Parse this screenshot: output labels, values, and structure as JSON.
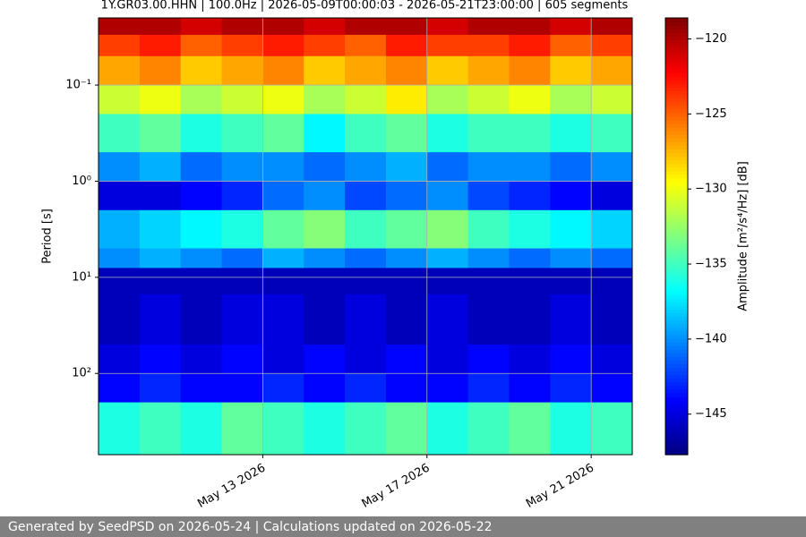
{
  "chart_data": {
    "type": "heatmap",
    "title": "1Y.GR03.00.HHN | 100.0Hz | 2026-05-09T00:00:03 - 2026-05-21T23:00:00 | 605 segments",
    "y_label": "Period [s]",
    "colorbar_label": "Amplitude [m²/s⁴/Hz] [dB]",
    "colormap": "jet",
    "log_y": true,
    "y_inverted": true,
    "grid": true,
    "x": [
      "2026-05-09",
      "2026-05-10",
      "2026-05-11",
      "2026-05-12",
      "2026-05-13",
      "2026-05-14",
      "2026-05-15",
      "2026-05-16",
      "2026-05-17",
      "2026-05-18",
      "2026-05-19",
      "2026-05-20",
      "2026-05-21"
    ],
    "xlim": [
      "2026-05-09",
      "2026-05-22"
    ],
    "xticks": [
      {
        "value": "2026-05-13",
        "label": "May 13 2026"
      },
      {
        "value": "2026-05-17",
        "label": "May 17 2026"
      },
      {
        "value": "2026-05-21",
        "label": "May 21 2026"
      }
    ],
    "period_bins": [
      0.02,
      0.03,
      0.05,
      0.1,
      0.2,
      0.5,
      1,
      2,
      5,
      8,
      15,
      50,
      100,
      200,
      700
    ],
    "ylim": [
      0.02,
      700
    ],
    "yticks": [
      {
        "value": 0.1,
        "label": "10⁻¹"
      },
      {
        "value": 1,
        "label": "10⁰"
      },
      {
        "value": 10,
        "label": "10¹"
      },
      {
        "value": 100,
        "label": "10²"
      }
    ],
    "z": [
      [
        -120,
        -120,
        -121,
        -120,
        -120,
        -121,
        -120,
        -120,
        -121,
        -120,
        -120,
        -121,
        -120
      ],
      [
        -124,
        -123,
        -125,
        -124,
        -123,
        -124,
        -125,
        -123,
        -124,
        -124,
        -123,
        -125,
        -124
      ],
      [
        -127,
        -126,
        -128,
        -127,
        -126,
        -128,
        -127,
        -126,
        -128,
        -127,
        -126,
        -128,
        -127
      ],
      [
        -131,
        -130,
        -132,
        -131,
        -130,
        -132,
        -131,
        -129,
        -132,
        -131,
        -130,
        -132,
        -131
      ],
      [
        -135,
        -134,
        -136,
        -135,
        -134,
        -137,
        -135,
        -134,
        -136,
        -135,
        -135,
        -136,
        -135
      ],
      [
        -140,
        -139,
        -141,
        -140,
        -140,
        -141,
        -140,
        -139,
        -141,
        -140,
        -140,
        -141,
        -140
      ],
      [
        -145,
        -145,
        -144,
        -143,
        -141,
        -140,
        -142,
        -141,
        -140,
        -142,
        -143,
        -144,
        -145
      ],
      [
        -139,
        -138,
        -137,
        -136,
        -134,
        -133,
        -135,
        -134,
        -133,
        -135,
        -136,
        -137,
        -138
      ],
      [
        -140,
        -139,
        -140,
        -141,
        -139,
        -140,
        -141,
        -140,
        -139,
        -140,
        -141,
        -140,
        -141
      ],
      [
        -146,
        -146,
        -146,
        -146,
        -146,
        -146,
        -146,
        -146,
        -146,
        -146,
        -146,
        -146,
        -146
      ],
      [
        -146,
        -145,
        -146,
        -145,
        -145,
        -146,
        -145,
        -146,
        -145,
        -146,
        -146,
        -145,
        -146
      ],
      [
        -145,
        -144,
        -145,
        -144,
        -145,
        -144,
        -145,
        -144,
        -145,
        -144,
        -145,
        -144,
        -145
      ],
      [
        -144,
        -143,
        -144,
        -144,
        -143,
        -144,
        -143,
        -144,
        -144,
        -143,
        -144,
        -143,
        -144
      ],
      [
        -136,
        -135,
        -136,
        -134,
        -135,
        -136,
        -135,
        -134,
        -136,
        -135,
        -134,
        -136,
        -135
      ]
    ],
    "clim": [
      -147.7,
      -118.6
    ],
    "cticks": [
      {
        "value": -145,
        "label": "−145"
      },
      {
        "value": -140,
        "label": "−140"
      },
      {
        "value": -135,
        "label": "−135"
      },
      {
        "value": -130,
        "label": "−130"
      },
      {
        "value": -125,
        "label": "−125"
      },
      {
        "value": -120,
        "label": "−120"
      }
    ]
  },
  "footer": "Generated by SeedPSD on 2026-05-24 | Calculations updated on 2026-05-22"
}
